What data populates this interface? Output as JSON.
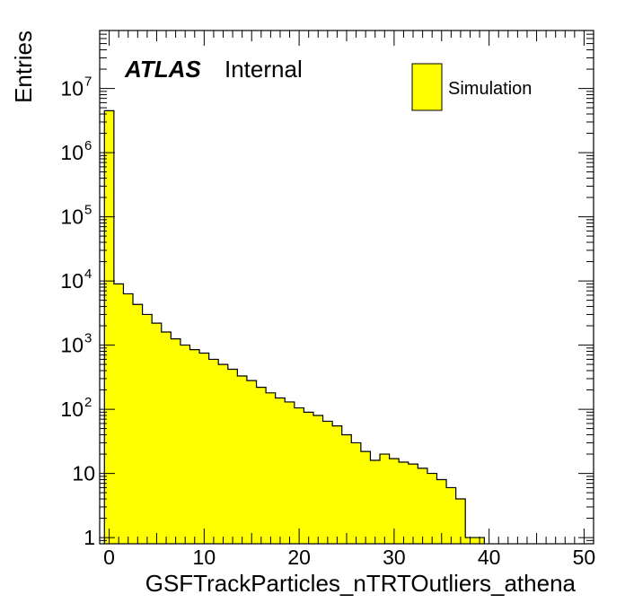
{
  "chart_data": {
    "type": "bar",
    "histogram": true,
    "xlabel": "GSFTrackParticles_nTRTOutliers_athena",
    "ylabel": "Entries",
    "xlim": [
      -1,
      51
    ],
    "ylim": [
      0.8,
      80000000
    ],
    "yscale": "log",
    "bin_width": 1,
    "bin_edges_start": -0.5,
    "x_ticks": [
      "0",
      "10",
      "20",
      "30",
      "40",
      "50"
    ],
    "y_ticks": [
      {
        "value": 1,
        "base": "1",
        "exp": ""
      },
      {
        "value": 10,
        "base": "10",
        "exp": ""
      },
      {
        "value": 100,
        "base": "10",
        "exp": "2"
      },
      {
        "value": 1000,
        "base": "10",
        "exp": "3"
      },
      {
        "value": 10000,
        "base": "10",
        "exp": "4"
      },
      {
        "value": 100000,
        "base": "10",
        "exp": "5"
      },
      {
        "value": 1000000,
        "base": "10",
        "exp": "6"
      },
      {
        "value": 10000000,
        "base": "10",
        "exp": "7"
      }
    ],
    "series": [
      {
        "name": "Simulation",
        "color": "#ffff00",
        "values": [
          4500000,
          9000,
          6300,
          4300,
          3000,
          2200,
          1600,
          1250,
          1000,
          850,
          750,
          600,
          500,
          420,
          330,
          280,
          220,
          180,
          150,
          130,
          105,
          90,
          80,
          65,
          55,
          40,
          30,
          22,
          16,
          20,
          17,
          15,
          14,
          12,
          10,
          8,
          6,
          4,
          1,
          1
        ]
      }
    ],
    "grid": false,
    "legend_position": "top-right"
  },
  "annotation": {
    "atlas": "ATLAS",
    "label": "Internal"
  },
  "legend": {
    "entry": "Simulation"
  }
}
